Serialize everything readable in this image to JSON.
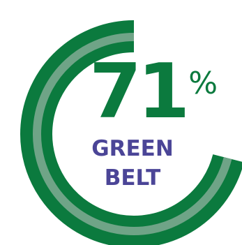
{
  "value": "71",
  "percent_symbol": "%",
  "fraction": 0.71,
  "label_line1": "GREEN",
  "label_line2": "BELT",
  "colors": {
    "ring": "#0b7a3e",
    "ring_highlight": "#6fa487",
    "label": "#4b4597"
  }
}
